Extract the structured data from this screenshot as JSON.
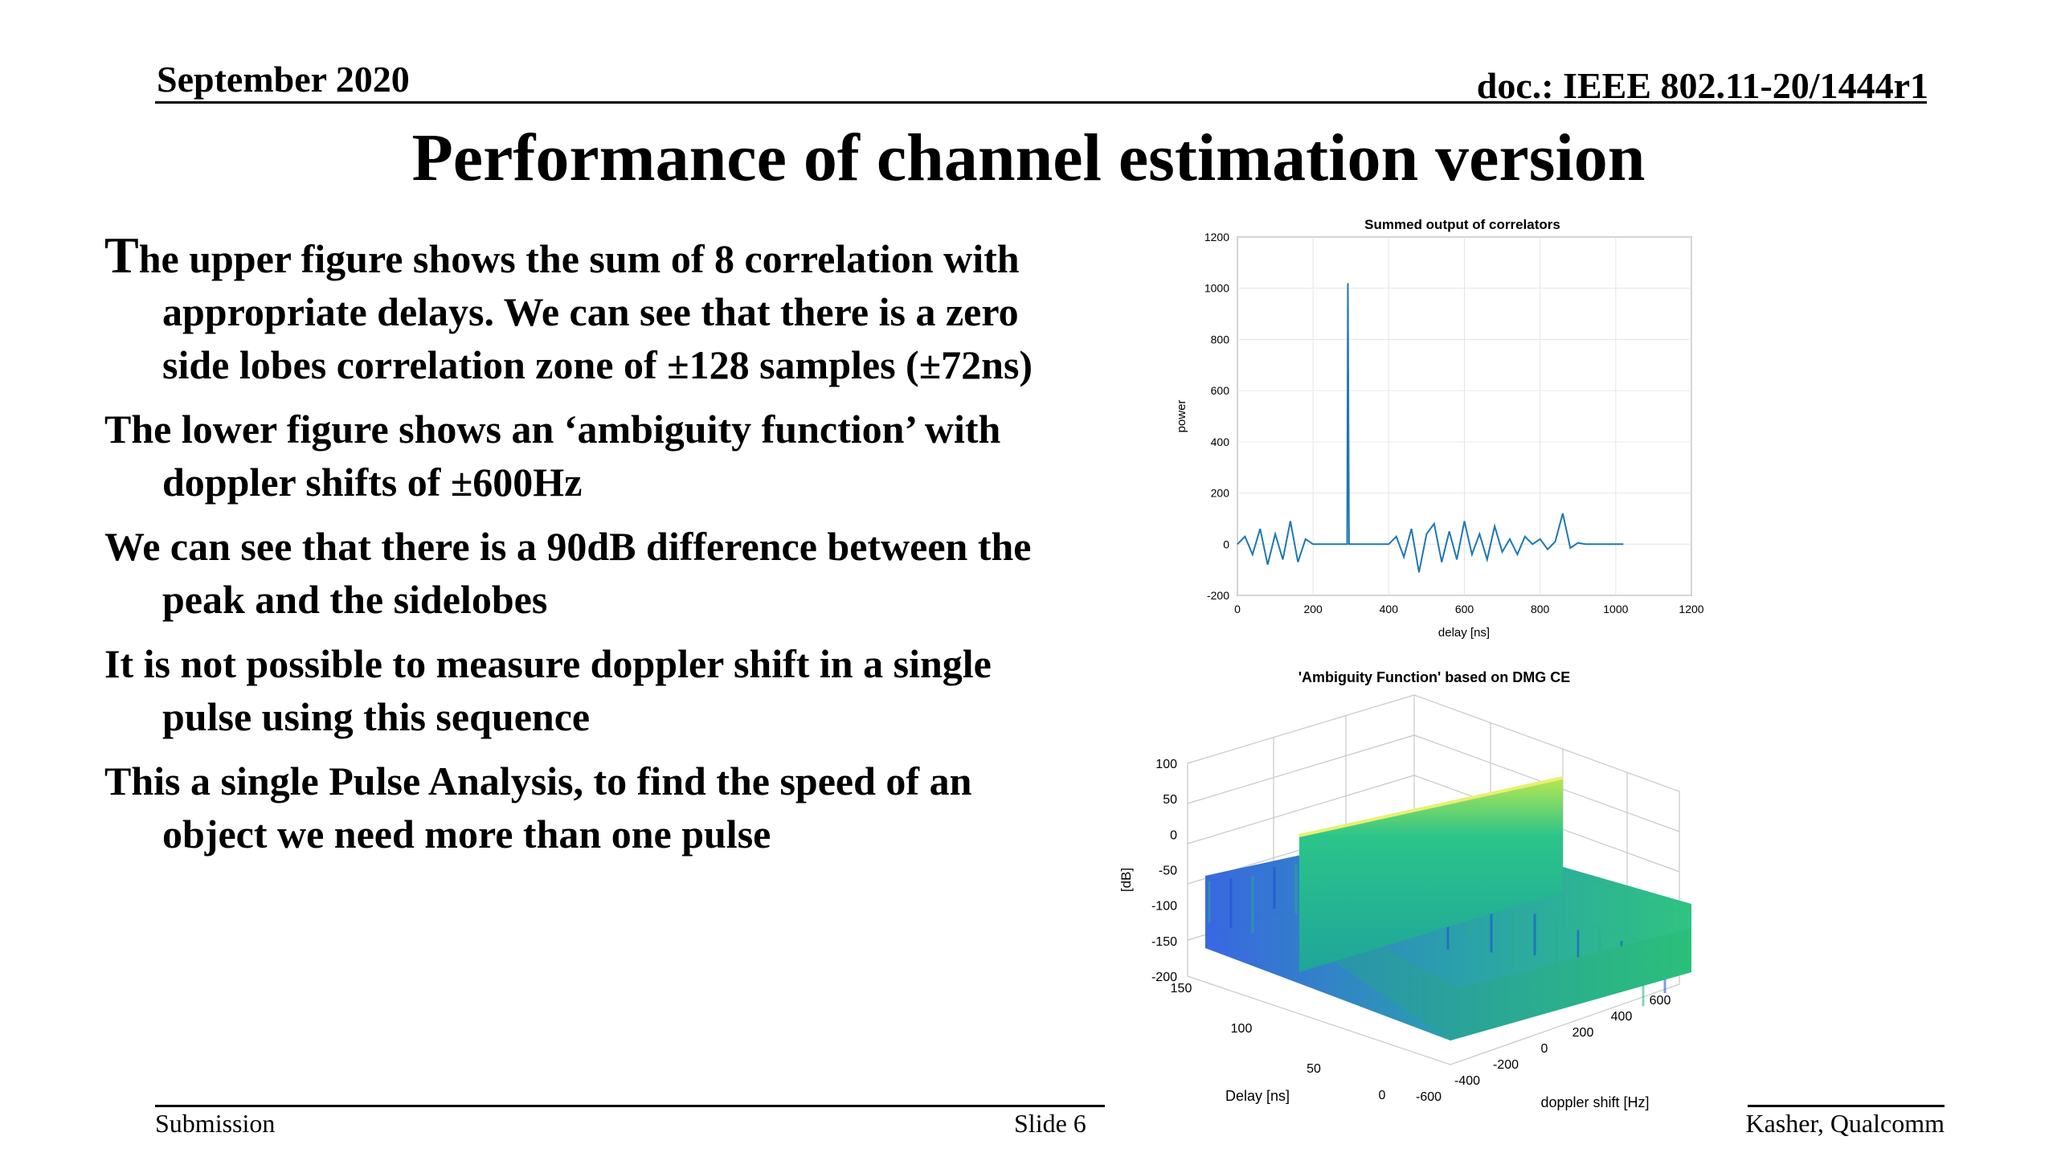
{
  "header": {
    "date": "September 2020",
    "doc": "doc.: IEEE 802.11-20/1444r1"
  },
  "title": "Performance of channel estimation version",
  "bullets": [
    {
      "first": "T",
      "rest": "he upper figure shows the sum of 8 correlation with appropriate delays. We can see that there is a zero side lobes correlation zone of ±128 samples (±72ns)"
    },
    {
      "first": "",
      "rest": "The lower figure shows an ‘ambiguity function’ with doppler shifts of ±600Hz"
    },
    {
      "first": "",
      "rest": "We can see that there is a 90dB difference between the peak and the sidelobes"
    },
    {
      "first": "",
      "rest": "It is not possible to measure doppler shift in a single pulse using this sequence"
    },
    {
      "first": "",
      "rest": "This a single Pulse Analysis, to find the speed of an object we need more than one pulse"
    }
  ],
  "footer": {
    "left": "Submission",
    "center": "Slide 6",
    "right": "Kasher, Qualcomm"
  },
  "colors": {
    "line": "#1f77b4",
    "surface_low": "#3b6fd8",
    "surface_high": "#d8f060"
  },
  "chart_data": [
    {
      "type": "line",
      "title": "Summed output of correlators",
      "xlabel": "delay [ns]",
      "ylabel": "power",
      "xlim": [
        0,
        1200
      ],
      "ylim": [
        -200,
        1200
      ],
      "xticks": [
        "0",
        "200",
        "400",
        "600",
        "800",
        "1000",
        "1200"
      ],
      "yticks": [
        "-200",
        "0",
        "200",
        "400",
        "600",
        "800",
        "1000",
        "1200"
      ],
      "grid": true,
      "series": [
        {
          "x": [
            0,
            20,
            40,
            60,
            80,
            100,
            120,
            140,
            160,
            180,
            200,
            220,
            240,
            260,
            280,
            290,
            292,
            295,
            300,
            320,
            340,
            360,
            380,
            400,
            420,
            440,
            460,
            480,
            500,
            520,
            540,
            560,
            580,
            600,
            620,
            640,
            660,
            680,
            700,
            720,
            740,
            760,
            780,
            800,
            820,
            840,
            860,
            880,
            900,
            920,
            940,
            960,
            980,
            1000,
            1020
          ],
          "y": [
            0,
            30,
            -40,
            60,
            -80,
            40,
            -60,
            90,
            -70,
            20,
            0,
            0,
            0,
            0,
            0,
            0,
            1020,
            0,
            0,
            0,
            0,
            0,
            0,
            0,
            30,
            -50,
            60,
            -110,
            40,
            80,
            -70,
            50,
            -60,
            90,
            -40,
            40,
            -60,
            70,
            -30,
            20,
            -40,
            30,
            0,
            20,
            -20,
            10,
            120,
            -15,
            5,
            0,
            0,
            0,
            0,
            0,
            0
          ]
        }
      ]
    },
    {
      "type": "surface",
      "title": "'Ambiguity Function' based on DMG CE",
      "xlabel": "doppler shift [Hz]",
      "ylabel": "Delay [ns]",
      "zlabel": "[dB]",
      "xticks": [
        "-600",
        "-400",
        "-200",
        "0",
        "200",
        "400",
        "600"
      ],
      "yticks": [
        "0",
        "50",
        "100",
        "150"
      ],
      "zticks": [
        "100",
        "50",
        "0",
        "-50",
        "-100",
        "-150",
        "-200"
      ],
      "peak_db": 0,
      "sidelobe_db": -90
    }
  ]
}
